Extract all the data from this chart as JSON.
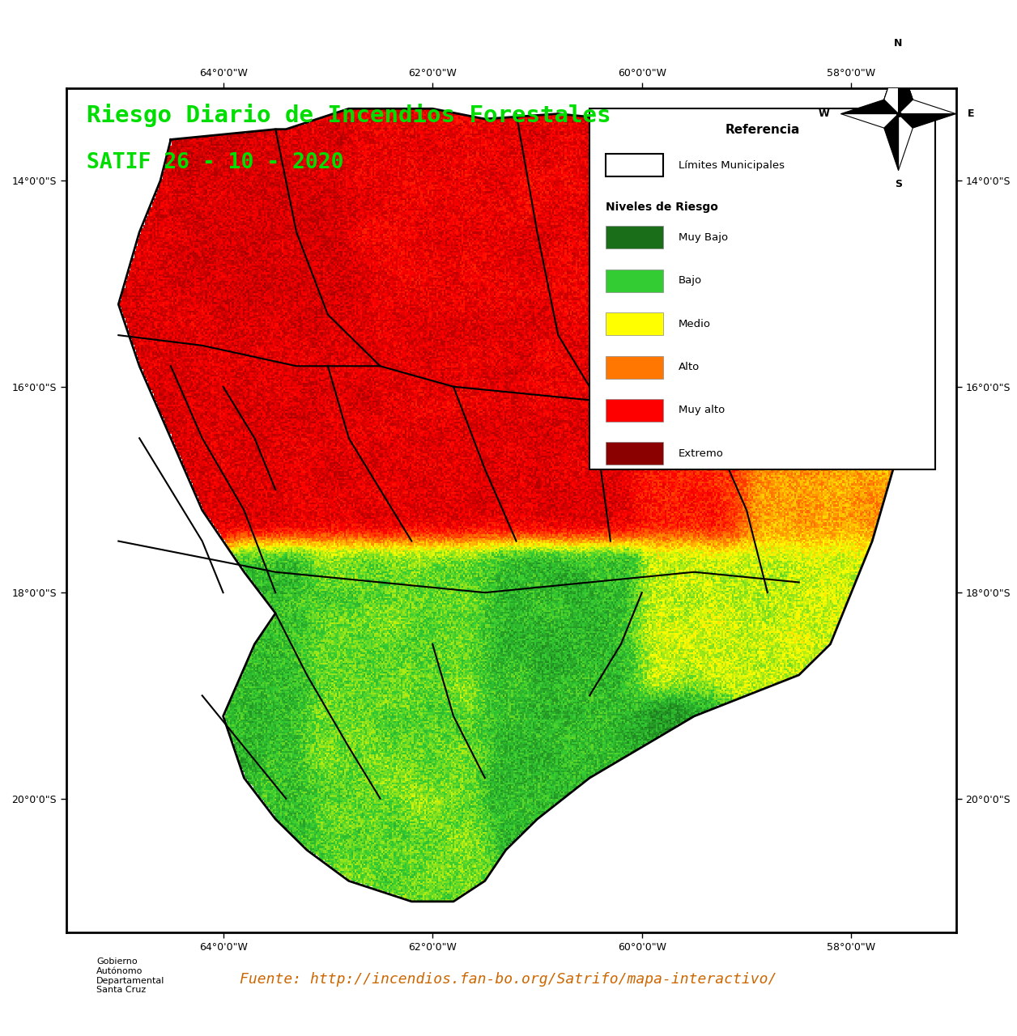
{
  "title_line1": "Riesgo Diario de Incendios Forestales",
  "title_line2": "SATIF 26 - 10 - 2020",
  "title_color": "#00dd00",
  "title_fontsize": 21,
  "title_fontsize2": 19,
  "background_color": "white",
  "map_border_color": "black",
  "lon_ticks": [
    -64,
    -62,
    -60,
    -58
  ],
  "lat_ticks": [
    -14,
    -16,
    -18,
    -20
  ],
  "lon_labels": [
    "64°0'0\"W",
    "62°0'0\"W",
    "60°0'0\"W",
    "58°0'0\"W"
  ],
  "lat_labels": [
    "14°0'0\"S",
    "16°0'0\"S",
    "18°0'0\"S",
    "20°0'0\"S"
  ],
  "tick_fontsize": 9,
  "legend_title": "Referencia",
  "legend_subtitle": "Niveles de Riesgo",
  "legend_items": [
    {
      "label": "Límites Municipales",
      "color": "white",
      "edgecolor": "black"
    },
    {
      "label": "Muy Bajo",
      "color": "#1a6e1a"
    },
    {
      "label": "Bajo",
      "color": "#33cc33"
    },
    {
      "label": "Medio",
      "color": "#ffff00"
    },
    {
      "label": "Alto",
      "color": "#ff7700"
    },
    {
      "label": "Muy alto",
      "color": "#ff0000"
    },
    {
      "label": "Extremo",
      "color": "#8b0000"
    }
  ],
  "source_text": "Fuente: http://incendios.fan-bo.org/Satrifo/mapa-interactivo/",
  "source_color": "#cc6600",
  "source_fontsize": 13
}
